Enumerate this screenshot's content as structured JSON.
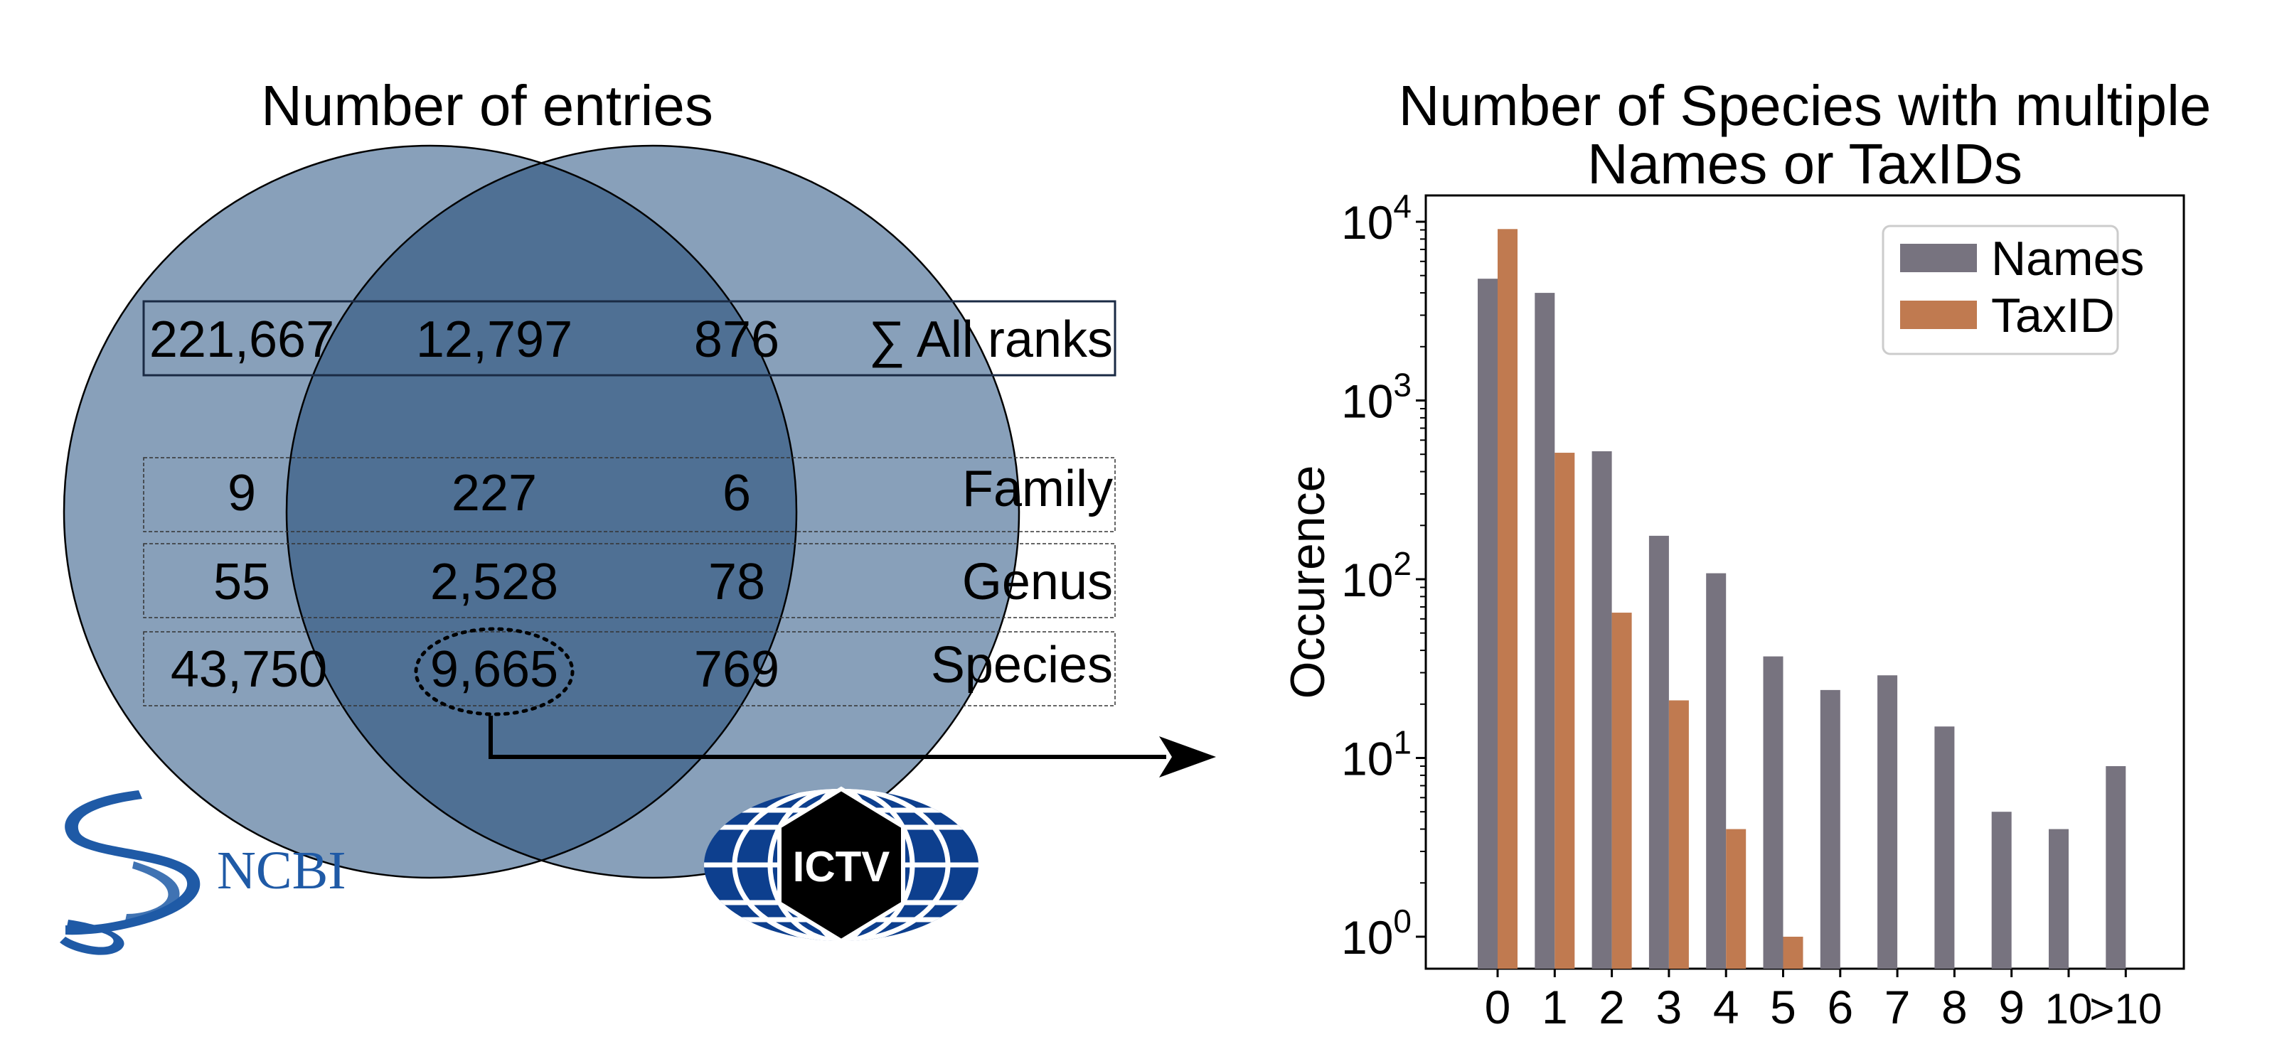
{
  "venn": {
    "title": "Number of entries",
    "colors": {
      "circle": "#4f7399",
      "overlap": "#3d6189",
      "ncbi_blue": "#1f5aa6",
      "ictv_blue": "#0d3f8e"
    },
    "rows": [
      {
        "label": "∑ All ranks",
        "ncbi": "221,667",
        "both": "12,797",
        "ictv": "876"
      },
      {
        "label": "Family",
        "ncbi": "9",
        "both": "227",
        "ictv": "6"
      },
      {
        "label": "Genus",
        "ncbi": "55",
        "both": "2,528",
        "ictv": "78"
      },
      {
        "label": "Species",
        "ncbi": "43,750",
        "both": "9,665",
        "ictv": "769"
      }
    ],
    "logos": {
      "ncbi": "NCBI",
      "ictv": "ICTV"
    }
  },
  "chart_data": {
    "type": "bar",
    "title": "Number of Species with multiple Names or TaxIDs",
    "title_lines": [
      "Number of Species with multiple",
      "Names or TaxIDs"
    ],
    "xlabel": "",
    "ylabel": "Occurence",
    "yscale": "log",
    "ylim": [
      0.7,
      15000
    ],
    "categories": [
      "0",
      "1",
      "2",
      "3",
      "4",
      "5",
      "6",
      "7",
      "8",
      "9",
      "10",
      ">10"
    ],
    "y_ticks": [
      {
        "value": 1,
        "base": "10",
        "exp": "0"
      },
      {
        "value": 10,
        "base": "10",
        "exp": "1"
      },
      {
        "value": 100,
        "base": "10",
        "exp": "2"
      },
      {
        "value": 1000,
        "base": "10",
        "exp": "3"
      },
      {
        "value": 10000,
        "base": "10",
        "exp": "4"
      }
    ],
    "series": [
      {
        "name": "Names",
        "color": "#77737f",
        "values": [
          4800,
          4000,
          520,
          175,
          108,
          37,
          24,
          29,
          15,
          5,
          4,
          9
        ]
      },
      {
        "name": "TaxID",
        "color": "#c07a50",
        "values": [
          9100,
          510,
          65,
          21,
          4,
          1,
          null,
          null,
          null,
          null,
          null,
          null
        ]
      }
    ],
    "legend_position": "top-right"
  }
}
